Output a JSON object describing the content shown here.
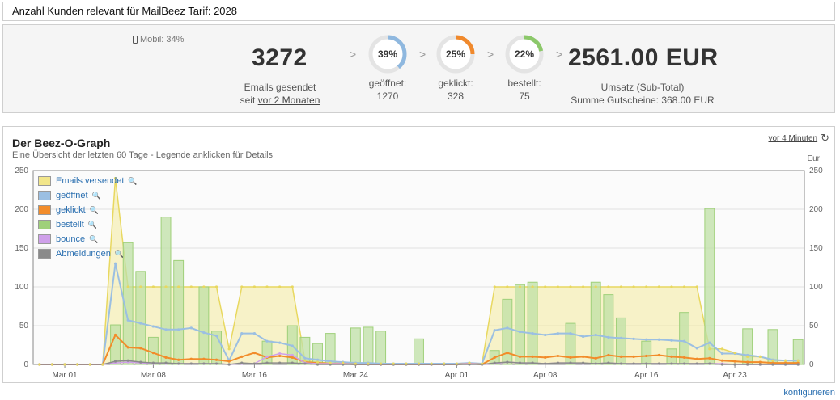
{
  "header": {
    "title": "Anzahl Kunden relevant für MailBeez Tarif: 2028"
  },
  "stats": {
    "mobile": "Mobil: 34%",
    "emails_sent": "3272",
    "emails_sent_label": "Emails gesendet",
    "since_prefix": "seit",
    "since_link": "vor 2 Monaten",
    "opened": {
      "pct": 39,
      "pct_label": "39%",
      "label": "geöffnet:",
      "count": "1270",
      "color": "#8fb8df"
    },
    "clicked": {
      "pct": 25,
      "pct_label": "25%",
      "label": "geklickt:",
      "count": "328",
      "color": "#f0892c"
    },
    "ordered": {
      "pct": 22,
      "pct_label": "22%",
      "label": "bestellt:",
      "count": "75",
      "color": "#8cc86a"
    },
    "revenue": "2561.00 EUR",
    "revenue_label": "Umsatz (Sub-Total)",
    "vouchers_label": "Summe Gutscheine: 368.00 EUR",
    "chevron": ">"
  },
  "graph": {
    "title": "Der Beez-O-Graph",
    "subtitle": "Eine Übersicht der letzten 60 Tage - Legende anklicken für Details",
    "refresh_link": "vor 4 Minuten",
    "right_axis_label": "Eur",
    "configure": "konfigurieren"
  },
  "chart_data": {
    "type": "bar",
    "ylim": [
      0,
      250
    ],
    "yticks": [
      0,
      50,
      100,
      150,
      200,
      250
    ],
    "xtick_labels": [
      "Mar 01",
      "Mar 08",
      "Mar 16",
      "Mar 24",
      "Apr 01",
      "Apr 08",
      "Apr 16",
      "Apr 23"
    ],
    "xtick_index": [
      2,
      9,
      17,
      25,
      33,
      40,
      48,
      55
    ],
    "legend": [
      {
        "name": "Emails versendet",
        "color": "#f2e68a"
      },
      {
        "name": "geöffnet",
        "color": "#9bbfe2"
      },
      {
        "name": "geklickt",
        "color": "#f28c2a"
      },
      {
        "name": "bestellt",
        "color": "#9fd07a"
      },
      {
        "name": "bounce",
        "color": "#cfa0ea"
      },
      {
        "name": "Abmeldungen",
        "color": "#8a8a8a"
      }
    ],
    "series": [
      {
        "name": "Emails versendet",
        "values": [
          0,
          0,
          0,
          0,
          0,
          0,
          240,
          100,
          100,
          100,
          100,
          100,
          100,
          100,
          100,
          20,
          100,
          100,
          100,
          100,
          100,
          5,
          3,
          2,
          2,
          1,
          1,
          1,
          1,
          1,
          1,
          1,
          1,
          1,
          2,
          1,
          100,
          100,
          100,
          100,
          100,
          100,
          100,
          100,
          100,
          100,
          100,
          100,
          100,
          100,
          100,
          100,
          100,
          20,
          20,
          15,
          10,
          10,
          5,
          5,
          5
        ]
      },
      {
        "name": "geöffnet",
        "values": [
          0,
          0,
          0,
          0,
          0,
          0,
          130,
          57,
          53,
          49,
          45,
          45,
          47,
          41,
          37,
          5,
          40,
          40,
          30,
          28,
          24,
          8,
          6,
          4,
          3,
          2,
          2,
          1,
          1,
          1,
          1,
          1,
          1,
          1,
          2,
          1,
          44,
          47,
          42,
          40,
          38,
          40,
          40,
          36,
          38,
          35,
          34,
          33,
          32,
          32,
          31,
          30,
          21,
          28,
          14,
          14,
          12,
          10,
          6,
          5,
          5
        ]
      },
      {
        "name": "geklickt",
        "values": [
          0,
          0,
          0,
          0,
          0,
          0,
          38,
          22,
          21,
          15,
          9,
          6,
          7,
          7,
          6,
          4,
          10,
          15,
          9,
          11,
          9,
          3,
          2,
          1,
          1,
          0,
          0,
          0,
          0,
          0,
          0,
          0,
          0,
          0,
          1,
          0,
          9,
          15,
          10,
          10,
          9,
          11,
          9,
          10,
          8,
          12,
          10,
          10,
          11,
          12,
          10,
          9,
          7,
          8,
          5,
          4,
          3,
          3,
          2,
          2,
          2
        ]
      },
      {
        "name": "bestellt",
        "values": [
          0,
          0,
          0,
          0,
          0,
          0,
          51,
          157,
          120,
          35,
          190,
          134,
          0,
          100,
          43,
          0,
          0,
          0,
          30,
          0,
          50,
          35,
          27,
          40,
          0,
          47,
          48,
          43,
          0,
          0,
          33,
          0,
          0,
          0,
          0,
          0,
          18,
          84,
          103,
          106,
          0,
          0,
          53,
          0,
          106,
          90,
          60,
          0,
          30,
          0,
          20,
          67,
          0,
          201,
          0,
          0,
          46,
          0,
          45,
          0,
          32
        ]
      },
      {
        "name": "bounce",
        "values": [
          0,
          0,
          0,
          0,
          0,
          0,
          2,
          3,
          2,
          1,
          1,
          1,
          1,
          1,
          1,
          0,
          1,
          1,
          10,
          14,
          12,
          2,
          1,
          1,
          1,
          0,
          0,
          0,
          0,
          0,
          0,
          0,
          0,
          0,
          1,
          0,
          1,
          3,
          2,
          2,
          1,
          2,
          2,
          1,
          1,
          2,
          1,
          1,
          1,
          1,
          1,
          1,
          1,
          1,
          1,
          0,
          0,
          0,
          0,
          0,
          0
        ]
      },
      {
        "name": "Abmeldungen",
        "values": [
          0,
          0,
          0,
          0,
          0,
          0,
          4,
          5,
          3,
          2,
          2,
          1,
          1,
          1,
          1,
          0,
          2,
          1,
          2,
          2,
          2,
          1,
          0,
          0,
          0,
          0,
          0,
          0,
          0,
          0,
          0,
          0,
          0,
          0,
          0,
          0,
          2,
          3,
          2,
          2,
          1,
          2,
          2,
          2,
          1,
          2,
          1,
          1,
          1,
          1,
          1,
          1,
          1,
          1,
          0,
          0,
          0,
          0,
          0,
          0,
          0
        ]
      }
    ]
  }
}
